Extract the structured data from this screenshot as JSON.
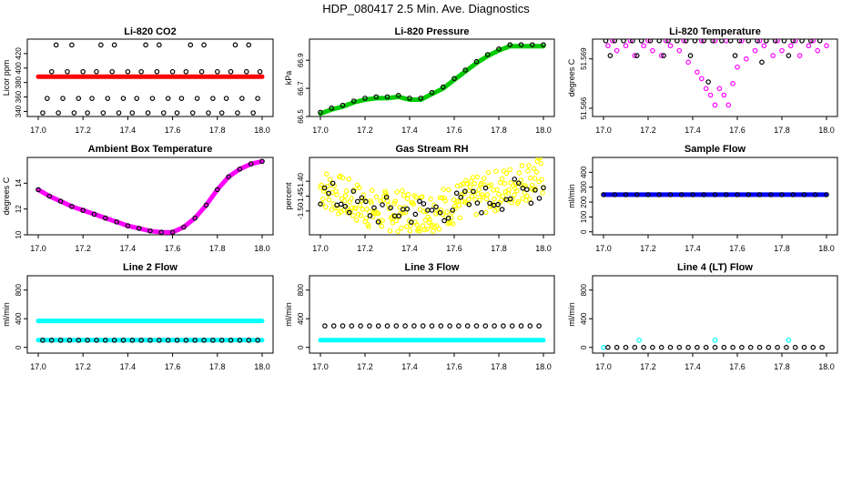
{
  "page_title": "HDP_080417  2.5 Min. Ave. Diagnostics",
  "chart_data": [
    {
      "type": "scatter",
      "title": "Li-820 CO2",
      "xlabel": "",
      "ylabel": "Licor ppm",
      "xlim": [
        17.0,
        18.0
      ],
      "ylim": [
        333,
        440
      ],
      "xticks": [
        "17.0",
        "17.2",
        "17.4",
        "17.6",
        "17.8",
        "18.0"
      ],
      "yticks": [
        340,
        360,
        380,
        400,
        420
      ],
      "series": [
        {
          "name": "black-circles",
          "color": "#000000",
          "style": "open",
          "x": [
            17.02,
            17.09,
            17.16,
            17.22,
            17.29,
            17.36,
            17.42,
            17.49,
            17.56,
            17.62,
            17.69,
            17.76,
            17.82,
            17.89,
            17.96,
            17.04,
            17.11,
            17.18,
            17.24,
            17.31,
            17.38,
            17.44,
            17.51,
            17.58,
            17.64,
            17.71,
            17.78,
            17.84,
            17.91,
            17.98,
            17.06,
            17.13,
            17.2,
            17.26,
            17.33,
            17.4,
            17.46,
            17.53,
            17.6,
            17.66,
            17.73,
            17.8,
            17.86,
            17.93,
            17.99,
            17.08,
            17.15,
            17.28,
            17.34,
            17.48,
            17.54,
            17.68,
            17.74,
            17.88,
            17.94
          ],
          "y": [
            338,
            338,
            338,
            338,
            338,
            338,
            338,
            338,
            338,
            338,
            338,
            338,
            338,
            338,
            338,
            358,
            358,
            358,
            358,
            358,
            358,
            358,
            358,
            358,
            358,
            358,
            358,
            358,
            358,
            358,
            395,
            395,
            395,
            395,
            395,
            395,
            395,
            395,
            395,
            395,
            395,
            395,
            395,
            395,
            395,
            432,
            432,
            432,
            432,
            432,
            432,
            432,
            432,
            432,
            432
          ]
        },
        {
          "name": "red-line",
          "color": "#ff0000",
          "style": "band",
          "x": [
            17.0,
            17.1,
            17.2,
            17.3,
            17.4,
            17.5,
            17.6,
            17.7,
            17.8,
            17.9,
            18.0
          ],
          "y": [
            388,
            388,
            388,
            388,
            388,
            388,
            388,
            388,
            388,
            388,
            388
          ]
        }
      ]
    },
    {
      "type": "scatter",
      "title": "Li-820 Pressure",
      "xlabel": "",
      "ylabel": "kPa",
      "xlim": [
        17.0,
        18.0
      ],
      "ylim": [
        66.5,
        67.05
      ],
      "xticks": [
        "17.0",
        "17.2",
        "17.4",
        "17.6",
        "17.8",
        "18.0"
      ],
      "yticks": [
        66.5,
        66.7,
        66.9
      ],
      "series": [
        {
          "name": "green",
          "color": "#00cc00",
          "style": "band",
          "x": [
            17.0,
            17.05,
            17.1,
            17.15,
            17.2,
            17.25,
            17.3,
            17.35,
            17.4,
            17.45,
            17.5,
            17.55,
            17.6,
            17.65,
            17.7,
            17.75,
            17.8,
            17.85,
            17.9,
            17.95,
            18.0
          ],
          "y": [
            66.52,
            66.55,
            66.57,
            66.6,
            66.62,
            66.63,
            66.63,
            66.64,
            66.62,
            66.62,
            66.66,
            66.7,
            66.76,
            66.82,
            66.88,
            66.93,
            66.97,
            67.0,
            67.0,
            67.0,
            67.0
          ]
        },
        {
          "name": "black",
          "color": "#000000",
          "style": "open",
          "x": [
            17.0,
            17.05,
            17.1,
            17.15,
            17.2,
            17.25,
            17.3,
            17.35,
            17.4,
            17.45,
            17.5,
            17.55,
            17.6,
            17.65,
            17.7,
            17.75,
            17.8,
            17.85,
            17.9,
            17.95,
            18.0
          ],
          "y": [
            66.53,
            66.56,
            66.58,
            66.61,
            66.63,
            66.64,
            66.64,
            66.65,
            66.63,
            66.63,
            66.67,
            66.71,
            66.77,
            66.83,
            66.89,
            66.94,
            66.98,
            67.01,
            67.01,
            67.01,
            67.01
          ]
        }
      ]
    },
    {
      "type": "scatter",
      "title": "Li-820 Temperature",
      "xlabel": "",
      "ylabel": "degrees C",
      "xlim": [
        17.0,
        18.0
      ],
      "ylim": [
        51.5655,
        51.5702
      ],
      "xticks": [
        "17.0",
        "17.2",
        "17.4",
        "17.6",
        "17.8",
        "18.0"
      ],
      "ytick_labels": [
        "51.566",
        "51.569"
      ],
      "ytick_values": [
        51.566,
        51.569
      ],
      "series": [
        {
          "name": "magenta",
          "color": "#ff00ff",
          "style": "open",
          "x": [
            17.02,
            17.06,
            17.1,
            17.14,
            17.18,
            17.22,
            17.26,
            17.3,
            17.34,
            17.38,
            17.42,
            17.44,
            17.46,
            17.48,
            17.5,
            17.52,
            17.54,
            17.56,
            17.58,
            17.6,
            17.64,
            17.68,
            17.72,
            17.76,
            17.8,
            17.84,
            17.88,
            17.92,
            17.96,
            18.0,
            17.04,
            17.12,
            17.2,
            17.28,
            17.36,
            17.44,
            17.5,
            17.55,
            17.62,
            17.7,
            17.78,
            17.86,
            17.94
          ],
          "y": [
            51.5698,
            51.5695,
            51.5698,
            51.5692,
            51.5698,
            51.5695,
            51.5692,
            51.5698,
            51.5695,
            51.5688,
            51.5682,
            51.5678,
            51.5672,
            51.5668,
            51.5662,
            51.5672,
            51.5668,
            51.5662,
            51.5675,
            51.5685,
            51.569,
            51.5695,
            51.5698,
            51.5692,
            51.5695,
            51.5698,
            51.5692,
            51.5698,
            51.5695,
            51.5698,
            51.5701,
            51.5701,
            51.5701,
            51.5701,
            51.5701,
            51.5701,
            51.5701,
            51.5701,
            51.5701,
            51.5701,
            51.5701,
            51.5701,
            51.5701
          ]
        },
        {
          "name": "black",
          "color": "#000000",
          "style": "open",
          "x": [
            17.01,
            17.05,
            17.09,
            17.13,
            17.17,
            17.21,
            17.25,
            17.29,
            17.33,
            17.37,
            17.41,
            17.45,
            17.49,
            17.53,
            17.57,
            17.61,
            17.65,
            17.69,
            17.73,
            17.77,
            17.81,
            17.85,
            17.89,
            17.93,
            17.97,
            17.03,
            17.15,
            17.27,
            17.39,
            17.47,
            17.59,
            17.71,
            17.83
          ],
          "y": [
            51.5701,
            51.5701,
            51.5701,
            51.5701,
            51.5701,
            51.5701,
            51.5701,
            51.5701,
            51.5701,
            51.5701,
            51.5701,
            51.5701,
            51.5701,
            51.5701,
            51.5701,
            51.5701,
            51.5701,
            51.5701,
            51.5701,
            51.5701,
            51.5701,
            51.5701,
            51.5701,
            51.5701,
            51.5701,
            51.5692,
            51.5692,
            51.5692,
            51.5692,
            51.5676,
            51.5692,
            51.5688,
            51.5692
          ]
        }
      ]
    },
    {
      "type": "scatter",
      "title": "Ambient Box Temperature",
      "xlabel": "",
      "ylabel": "degrees C",
      "xlim": [
        17.0,
        18.0
      ],
      "ylim": [
        10,
        16
      ],
      "xticks": [
        "17.0",
        "17.2",
        "17.4",
        "17.6",
        "17.8",
        "18.0"
      ],
      "yticks": [
        10,
        12,
        14
      ],
      "series": [
        {
          "name": "magenta",
          "color": "#ff00ff",
          "style": "band",
          "x": [
            17.0,
            17.05,
            17.1,
            17.15,
            17.2,
            17.25,
            17.3,
            17.35,
            17.4,
            17.45,
            17.5,
            17.55,
            17.6,
            17.65,
            17.7,
            17.75,
            17.8,
            17.85,
            17.9,
            17.95,
            18.0
          ],
          "y": [
            13.5,
            13.0,
            12.6,
            12.2,
            11.9,
            11.6,
            11.3,
            11.0,
            10.7,
            10.5,
            10.3,
            10.2,
            10.2,
            10.6,
            11.3,
            12.3,
            13.5,
            14.5,
            15.1,
            15.5,
            15.7
          ]
        },
        {
          "name": "black",
          "color": "#000000",
          "style": "open",
          "x": [
            17.0,
            17.05,
            17.1,
            17.15,
            17.2,
            17.25,
            17.3,
            17.35,
            17.4,
            17.45,
            17.5,
            17.55,
            17.6,
            17.65,
            17.7,
            17.75,
            17.8,
            17.85,
            17.9,
            17.95,
            18.0
          ],
          "y": [
            13.5,
            13.0,
            12.6,
            12.2,
            11.9,
            11.6,
            11.3,
            11.0,
            10.7,
            10.5,
            10.3,
            10.2,
            10.2,
            10.6,
            11.3,
            12.3,
            13.5,
            14.5,
            15.1,
            15.5,
            15.7
          ]
        }
      ]
    },
    {
      "type": "scatter",
      "title": "Gas Stream RH",
      "xlabel": "",
      "ylabel": "percent",
      "xlim": [
        17.0,
        18.0
      ],
      "ylim": [
        -1.58,
        -1.32
      ],
      "xticks": [
        "17.0",
        "17.2",
        "17.4",
        "17.6",
        "17.8",
        "18.0"
      ],
      "ytick_labels": [
        "-1.50",
        "-1.45",
        "-1.40"
      ],
      "ytick_values": [
        -1.5,
        -1.45,
        -1.4
      ],
      "series": [
        {
          "name": "yellow-scatter",
          "color": "#ffff00",
          "style": "cloud",
          "x_range": [
            17.0,
            18.0
          ],
          "y_trend": [
            -1.42,
            -1.5,
            -1.5,
            -1.44,
            -1.38
          ],
          "y_spread": 0.07,
          "n": 260
        },
        {
          "name": "black",
          "color": "#000000",
          "style": "cloud",
          "x_range": [
            17.0,
            18.0
          ],
          "y_trend": [
            -1.44,
            -1.5,
            -1.5,
            -1.46,
            -1.42
          ],
          "y_spread": 0.05,
          "n": 55
        }
      ]
    },
    {
      "type": "scatter",
      "title": "Sample Flow",
      "xlabel": "",
      "ylabel": "ml/min",
      "xlim": [
        17.0,
        18.0
      ],
      "ylim": [
        -20,
        500
      ],
      "xticks": [
        "17.0",
        "17.2",
        "17.4",
        "17.6",
        "17.8",
        "18.0"
      ],
      "yticks": [
        0,
        100,
        200,
        300,
        400
      ],
      "series": [
        {
          "name": "blue",
          "color": "#0000ff",
          "style": "band",
          "x": [
            17.0,
            18.0
          ],
          "y": [
            250,
            250
          ]
        },
        {
          "name": "black",
          "color": "#000000",
          "style": "open",
          "x": [
            17.0,
            17.05,
            17.1,
            17.15,
            17.2,
            17.25,
            17.3,
            17.35,
            17.4,
            17.45,
            17.5,
            17.55,
            17.6,
            17.65,
            17.7,
            17.75,
            17.8,
            17.85,
            17.9,
            17.95,
            18.0
          ],
          "y": [
            250,
            250,
            250,
            250,
            250,
            250,
            250,
            250,
            250,
            250,
            250,
            250,
            250,
            250,
            250,
            250,
            250,
            250,
            250,
            250,
            250
          ]
        }
      ]
    },
    {
      "type": "scatter",
      "title": "Line 2 Flow",
      "xlabel": "",
      "ylabel": "ml/min",
      "xlim": [
        17.0,
        18.0
      ],
      "ylim": [
        -80,
        1000
      ],
      "xticks": [
        "17.0",
        "17.2",
        "17.4",
        "17.6",
        "17.8",
        "18.0"
      ],
      "yticks": [
        0,
        400,
        800
      ],
      "series": [
        {
          "name": "cyan-upper",
          "color": "#00ffff",
          "style": "band",
          "x": [
            17.0,
            18.0
          ],
          "y": [
            370,
            370
          ]
        },
        {
          "name": "cyan-lower",
          "color": "#00ffff",
          "style": "band",
          "x": [
            17.0,
            18.0
          ],
          "y": [
            100,
            100
          ]
        },
        {
          "name": "black",
          "color": "#000000",
          "style": "open",
          "x": [
            17.02,
            17.06,
            17.1,
            17.14,
            17.18,
            17.22,
            17.26,
            17.3,
            17.34,
            17.38,
            17.42,
            17.46,
            17.5,
            17.54,
            17.58,
            17.62,
            17.66,
            17.7,
            17.74,
            17.78,
            17.82,
            17.86,
            17.9,
            17.94,
            17.98
          ],
          "y": [
            100,
            100,
            100,
            100,
            100,
            100,
            100,
            100,
            100,
            100,
            100,
            100,
            100,
            100,
            100,
            100,
            100,
            100,
            100,
            100,
            100,
            100,
            100,
            100,
            100
          ]
        }
      ]
    },
    {
      "type": "scatter",
      "title": "Line 3 Flow",
      "xlabel": "",
      "ylabel": "ml/min",
      "xlim": [
        17.0,
        18.0
      ],
      "ylim": [
        -80,
        1000
      ],
      "xticks": [
        "17.0",
        "17.2",
        "17.4",
        "17.6",
        "17.8",
        "18.0"
      ],
      "yticks": [
        0,
        400,
        800
      ],
      "series": [
        {
          "name": "cyan-lower",
          "color": "#00ffff",
          "style": "band",
          "x": [
            17.0,
            18.0
          ],
          "y": [
            100,
            100
          ]
        },
        {
          "name": "black",
          "color": "#000000",
          "style": "open",
          "x": [
            17.02,
            17.06,
            17.1,
            17.14,
            17.18,
            17.22,
            17.26,
            17.3,
            17.34,
            17.38,
            17.42,
            17.46,
            17.5,
            17.54,
            17.58,
            17.62,
            17.66,
            17.7,
            17.74,
            17.78,
            17.82,
            17.86,
            17.9,
            17.94,
            17.98
          ],
          "y": [
            300,
            300,
            300,
            300,
            300,
            300,
            300,
            300,
            300,
            300,
            300,
            300,
            300,
            300,
            300,
            300,
            300,
            300,
            300,
            300,
            300,
            300,
            300,
            300,
            300
          ]
        }
      ]
    },
    {
      "type": "scatter",
      "title": "Line 4 (LT) Flow",
      "xlabel": "",
      "ylabel": "ml/min",
      "xlim": [
        17.0,
        18.0
      ],
      "ylim": [
        -80,
        1000
      ],
      "xticks": [
        "17.0",
        "17.2",
        "17.4",
        "17.6",
        "17.8",
        "18.0"
      ],
      "yticks": [
        0,
        400,
        800
      ],
      "series": [
        {
          "name": "cyan",
          "color": "#00ffff",
          "style": "open",
          "x": [
            17.0,
            17.16,
            17.5,
            17.83
          ],
          "y": [
            0,
            100,
            100,
            100
          ]
        },
        {
          "name": "black",
          "color": "#000000",
          "style": "open",
          "x": [
            17.02,
            17.06,
            17.1,
            17.14,
            17.18,
            17.22,
            17.26,
            17.3,
            17.34,
            17.38,
            17.42,
            17.46,
            17.5,
            17.54,
            17.58,
            17.62,
            17.66,
            17.7,
            17.74,
            17.78,
            17.82,
            17.86,
            17.9,
            17.94,
            17.98
          ],
          "y": [
            0,
            0,
            0,
            0,
            0,
            0,
            0,
            0,
            0,
            0,
            0,
            0,
            0,
            0,
            0,
            0,
            0,
            0,
            0,
            0,
            0,
            0,
            0,
            0,
            0
          ]
        }
      ]
    }
  ]
}
